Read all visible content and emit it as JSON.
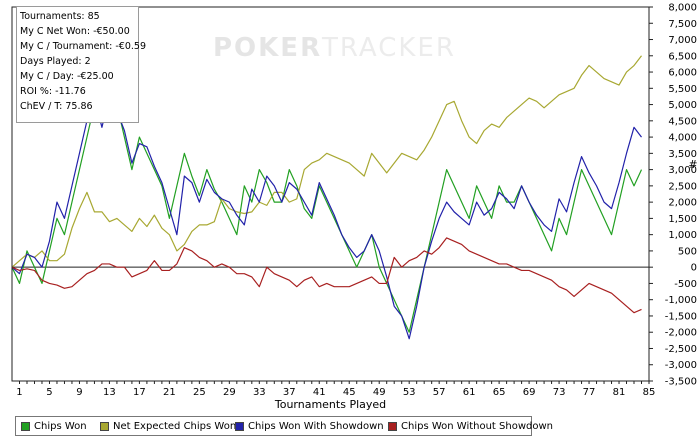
{
  "stats": [
    "Tournaments: 85",
    "My C Net Won: -€50.00",
    "My C / Tournament: -€0.59",
    "Days Played: 2",
    "My C / Day: -€25.00",
    "ROI %: -11.76",
    "ChEV / T: 75.86"
  ],
  "watermark": {
    "part1": "POKER",
    "part2": "TRACKER"
  },
  "chart_data": {
    "type": "line",
    "xlabel": "Tournaments Played",
    "ylabel": "#",
    "xlim": [
      0,
      85
    ],
    "ylim": [
      -3500,
      8000
    ],
    "x_ticks": [
      1,
      5,
      9,
      13,
      17,
      21,
      25,
      29,
      33,
      37,
      41,
      45,
      49,
      53,
      57,
      61,
      65,
      69,
      73,
      77,
      81,
      85
    ],
    "y_ticks": [
      8000,
      7500,
      7000,
      6500,
      6000,
      5500,
      5000,
      4500,
      4000,
      3500,
      3000,
      2500,
      2000,
      1500,
      1000,
      500,
      0,
      -500,
      -1000,
      -1500,
      -2000,
      -2500,
      -3000,
      -3500
    ],
    "y_tick_labels": [
      "8,000",
      "7,500",
      "7,000",
      "6,500",
      "6,000",
      "5,500",
      "5,000",
      "4,500",
      "4,000",
      "3,500",
      "3,000",
      "2,500",
      "2,000",
      "1,500",
      "1,000",
      "500",
      "0",
      "-500",
      "-1,000",
      "-1,500",
      "-2,000",
      "-2,500",
      "-3,000",
      "-3,500"
    ],
    "zero_line": true,
    "series": [
      {
        "name": "Chips Won",
        "color": "#22a022",
        "values": [
          0,
          -500,
          500,
          0,
          -500,
          500,
          1500,
          1000,
          2000,
          3000,
          4000,
          5000,
          4500,
          5500,
          5000,
          4000,
          3000,
          4000,
          3500,
          3000,
          2500,
          1500,
          2500,
          3500,
          2800,
          2200,
          3000,
          2400,
          2000,
          1500,
          1000,
          2500,
          2000,
          3000,
          2600,
          2000,
          2000,
          3000,
          2500,
          1800,
          1500,
          2500,
          2000,
          1500,
          1000,
          500,
          0,
          500,
          1000,
          0,
          -500,
          -1000,
          -1500,
          -2000,
          -1000,
          0,
          1000,
          2000,
          3000,
          2500,
          2000,
          1500,
          2500,
          2000,
          1500,
          2500,
          2000,
          2000,
          2500,
          2000,
          1500,
          1000,
          500,
          1500,
          1000,
          2000,
          3000,
          2500,
          2000,
          1500,
          1000,
          2000,
          3000,
          2500,
          3000
        ]
      },
      {
        "name": "Net Expected Chips Won",
        "color": "#a8a832",
        "values": [
          0,
          200,
          400,
          300,
          500,
          200,
          200,
          400,
          1200,
          1800,
          2300,
          1700,
          1700,
          1400,
          1500,
          1300,
          1100,
          1500,
          1250,
          1600,
          1200,
          1000,
          500,
          700,
          1100,
          1300,
          1300,
          1400,
          2100,
          1800,
          1700,
          1650,
          1700,
          2000,
          1900,
          2300,
          2300,
          2000,
          2100,
          3000,
          3200,
          3300,
          3500,
          3400,
          3300,
          3200,
          3000,
          2800,
          3500,
          3200,
          2900,
          3200,
          3500,
          3400,
          3300,
          3600,
          4000,
          4500,
          5000,
          5100,
          4500,
          4000,
          3800,
          4200,
          4400,
          4300,
          4600,
          4800,
          5000,
          5200,
          5100,
          4900,
          5100,
          5300,
          5400,
          5500,
          5900,
          6200,
          6000,
          5800,
          5700,
          5600,
          6000,
          6200,
          6500
        ]
      },
      {
        "name": "Chips Won With Showdown",
        "color": "#2222aa",
        "values": [
          0,
          -200,
          400,
          300,
          0,
          800,
          2000,
          1500,
          2500,
          3500,
          4500,
          5200,
          4300,
          5300,
          4800,
          4200,
          3200,
          3800,
          3700,
          3100,
          2600,
          1800,
          1000,
          2800,
          2600,
          2000,
          2700,
          2300,
          2100,
          2000,
          1600,
          1300,
          2400,
          2000,
          2800,
          2500,
          2000,
          2600,
          2400,
          2000,
          1600,
          2600,
          2100,
          1600,
          1000,
          600,
          300,
          500,
          1000,
          500,
          -300,
          -1200,
          -1500,
          -2200,
          -1200,
          0,
          800,
          1500,
          2000,
          1700,
          1500,
          1300,
          2000,
          1600,
          1800,
          2300,
          2100,
          1800,
          2500,
          2000,
          1600,
          1300,
          1100,
          2100,
          1700,
          2600,
          3400,
          2900,
          2500,
          2000,
          1800,
          2600,
          3500,
          4300,
          4000
        ]
      },
      {
        "name": "Chips Won Without Showdown",
        "color": "#a82020",
        "values": [
          0,
          -100,
          -50,
          -100,
          -400,
          -500,
          -550,
          -650,
          -600,
          -400,
          -200,
          -100,
          100,
          100,
          0,
          0,
          -300,
          -200,
          -100,
          200,
          -100,
          -100,
          100,
          600,
          500,
          300,
          200,
          0,
          100,
          0,
          -200,
          -200,
          -300,
          -600,
          0,
          -200,
          -300,
          -400,
          -600,
          -400,
          -300,
          -600,
          -500,
          -600,
          -600,
          -600,
          -500,
          -400,
          -300,
          -500,
          -500,
          300,
          0,
          200,
          300,
          500,
          400,
          600,
          900,
          800,
          700,
          500,
          400,
          300,
          200,
          100,
          100,
          0,
          -100,
          -100,
          -200,
          -300,
          -400,
          -600,
          -700,
          -900,
          -700,
          -500,
          -600,
          -700,
          -800,
          -1000,
          -1200,
          -1400,
          -1300
        ]
      }
    ]
  }
}
